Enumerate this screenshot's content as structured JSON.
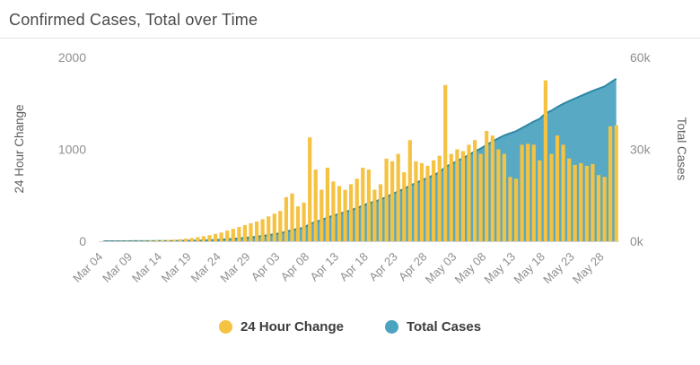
{
  "chart_data": {
    "type": "combo",
    "title": "Confirmed Cases, Total over Time",
    "x_tick_every": 5,
    "x": [
      "Mar 04",
      "Mar 05",
      "Mar 06",
      "Mar 07",
      "Mar 08",
      "Mar 09",
      "Mar 10",
      "Mar 11",
      "Mar 12",
      "Mar 13",
      "Mar 14",
      "Mar 15",
      "Mar 16",
      "Mar 17",
      "Mar 18",
      "Mar 19",
      "Mar 20",
      "Mar 21",
      "Mar 22",
      "Mar 23",
      "Mar 24",
      "Mar 25",
      "Mar 26",
      "Mar 27",
      "Mar 28",
      "Mar 29",
      "Mar 30",
      "Mar 31",
      "Apr 01",
      "Apr 02",
      "Apr 03",
      "Apr 04",
      "Apr 05",
      "Apr 06",
      "Apr 07",
      "Apr 08",
      "Apr 09",
      "Apr 10",
      "Apr 11",
      "Apr 12",
      "Apr 13",
      "Apr 14",
      "Apr 15",
      "Apr 16",
      "Apr 17",
      "Apr 18",
      "Apr 19",
      "Apr 20",
      "Apr 21",
      "Apr 22",
      "Apr 23",
      "Apr 24",
      "Apr 25",
      "Apr 26",
      "Apr 27",
      "Apr 28",
      "Apr 29",
      "Apr 30",
      "May 01",
      "May 02",
      "May 03",
      "May 04",
      "May 05",
      "May 06",
      "May 07",
      "May 08",
      "May 09",
      "May 10",
      "May 11",
      "May 12",
      "May 13",
      "May 14",
      "May 15",
      "May 16",
      "May 17",
      "May 18",
      "May 19",
      "May 20",
      "May 21",
      "May 22",
      "May 23",
      "May 24",
      "May 25",
      "May 26",
      "May 27",
      "May 28",
      "May 29",
      "May 30"
    ],
    "series": [
      {
        "name": "24 Hour Change",
        "type": "bar",
        "axis": "left",
        "color": "#F5C242",
        "values": [
          2,
          2,
          3,
          3,
          4,
          4,
          5,
          6,
          8,
          10,
          12,
          15,
          18,
          22,
          28,
          35,
          45,
          55,
          65,
          80,
          95,
          115,
          135,
          155,
          175,
          195,
          215,
          240,
          270,
          300,
          330,
          480,
          520,
          380,
          420,
          1130,
          780,
          560,
          800,
          650,
          600,
          560,
          620,
          680,
          800,
          780,
          560,
          620,
          900,
          870,
          950,
          750,
          1100,
          870,
          850,
          820,
          880,
          930,
          1700,
          950,
          1000,
          980,
          1050,
          1100,
          950,
          1200,
          1150,
          1000,
          950,
          700,
          680,
          1050,
          1060,
          1050,
          880,
          1750,
          950,
          1150,
          1050,
          900,
          830,
          850,
          820,
          840,
          720,
          700,
          1250,
          1260
        ]
      },
      {
        "name": "Total Cases",
        "type": "area",
        "axis": "right",
        "color": "#4AA3BF",
        "stroke": "#2E87A6",
        "values": [
          2,
          4,
          7,
          10,
          14,
          18,
          23,
          29,
          37,
          47,
          59,
          74,
          92,
          114,
          142,
          177,
          222,
          277,
          342,
          422,
          517,
          632,
          767,
          922,
          1097,
          1292,
          1507,
          1747,
          2017,
          2317,
          2647,
          3127,
          3647,
          4027,
          4447,
          5577,
          6357,
          6917,
          7717,
          8367,
          8967,
          9527,
          10147,
          10827,
          11627,
          12407,
          12967,
          13587,
          14487,
          15357,
          16307,
          17057,
          18157,
          19027,
          19877,
          20697,
          21577,
          22507,
          24207,
          25157,
          26157,
          27137,
          28187,
          29287,
          30237,
          31437,
          32587,
          33587,
          34537,
          35237,
          35917,
          36967,
          38027,
          39077,
          39957,
          41707,
          42657,
          43807,
          44857,
          45757,
          46587,
          47437,
          48257,
          49097,
          49817,
          50517,
          51767,
          53027
        ]
      }
    ],
    "left_axis": {
      "label": "24 Hour Change",
      "max": 2000,
      "tick_values": [
        0,
        1000,
        2000
      ],
      "tick_labels": [
        "0",
        "1000",
        "2000"
      ]
    },
    "right_axis": {
      "label": "Total Cases",
      "max": 60000,
      "tick_values": [
        0,
        30000,
        60000
      ],
      "tick_labels": [
        "0k",
        "30k",
        "60k"
      ]
    },
    "grid": "off",
    "legend_position": "bottom-center"
  },
  "legend": {
    "items": [
      {
        "label": "24 Hour Change",
        "color": "#F5C242"
      },
      {
        "label": "Total Cases",
        "color": "#4AA3BF"
      }
    ]
  }
}
